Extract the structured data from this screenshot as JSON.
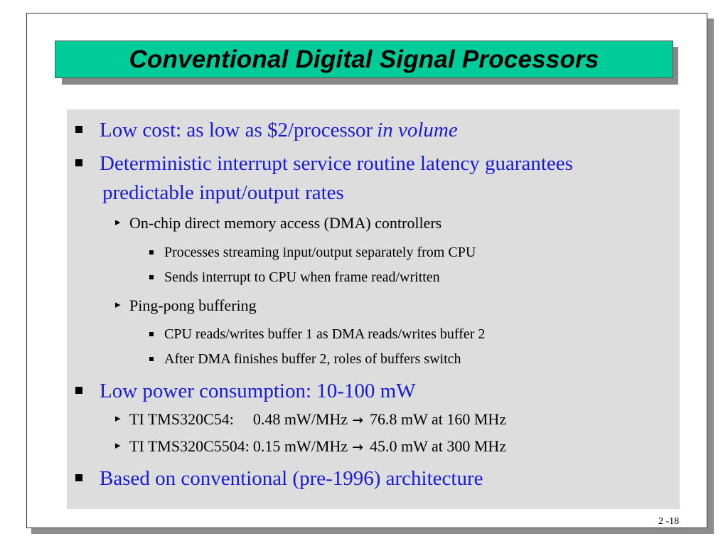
{
  "slide": {
    "title": "Conventional Digital Signal Processors",
    "page_number": "2 -18",
    "colors": {
      "title_bg": "#00cc99",
      "content_bg": "#dddddd",
      "level1_text": "#1a1adb"
    }
  },
  "bullets": {
    "b1": {
      "text": "Low cost: as low as $2/processor ",
      "emphasis": "in volume"
    },
    "b2": {
      "line1": "Deterministic interrupt service routine latency guarantees",
      "line2": "predictable input/output rates",
      "sub1": {
        "text": "On-chip direct memory access (DMA) controllers",
        "items": [
          "Processes streaming input/output separately from CPU",
          "Sends interrupt to CPU when frame read/written"
        ]
      },
      "sub2": {
        "text": "Ping-pong buffering",
        "items": [
          "CPU reads/writes buffer 1 as DMA reads/writes buffer 2",
          "After DMA finishes buffer 2, roles of buffers switch"
        ]
      }
    },
    "b3": {
      "text": "Low power consumption: 10-100 mW",
      "sub1": {
        "chip": "TI TMS320C54:",
        "rate": "0.48 mW/MHz",
        "arrow": "→",
        "result": "76.8 mW at 160 MHz"
      },
      "sub2": {
        "chip": "TI TMS320C5504:",
        "rate": "0.15 mW/MHz",
        "arrow": "→",
        "result": "45.0 mW at 300 MHz"
      }
    },
    "b4": {
      "text": "Based on conventional (pre-1996) architecture"
    }
  }
}
